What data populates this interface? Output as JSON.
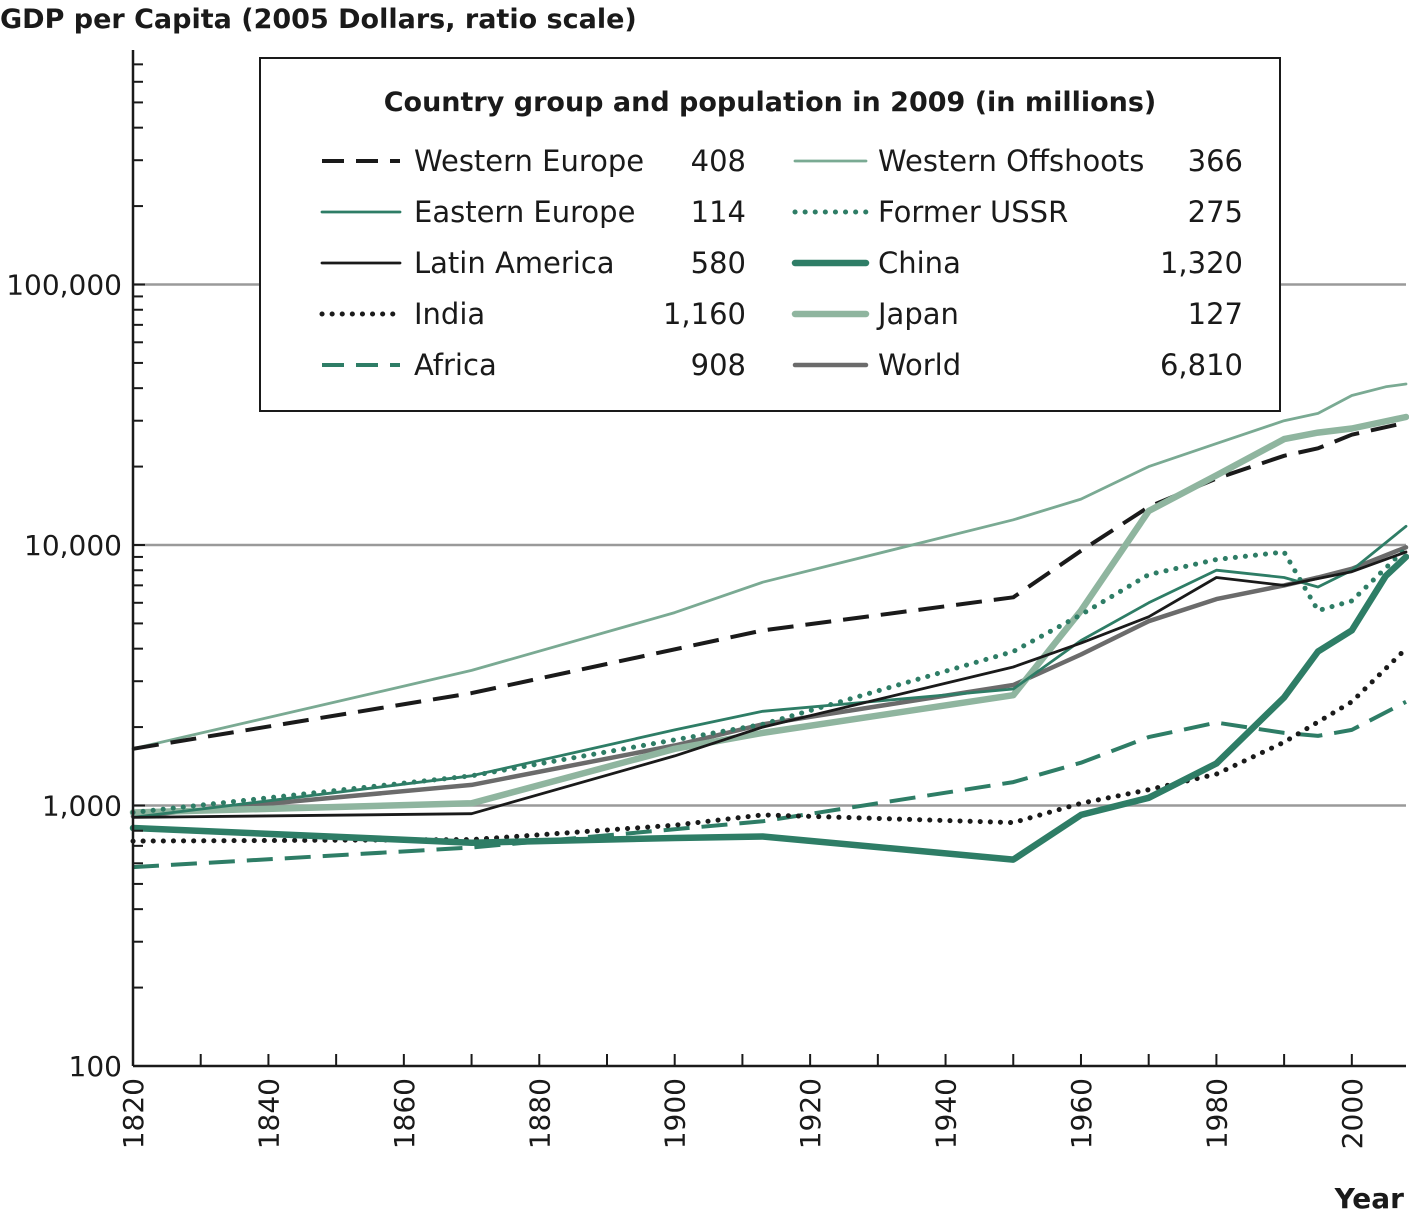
{
  "chart_data": {
    "type": "line",
    "title": "",
    "ylabel": "GDP per Capita (2005 Dollars, ratio scale)",
    "xlabel": "Year",
    "y_scale": "log",
    "ylim": [
      100,
      1000000
    ],
    "xlim": [
      1820,
      2008
    ],
    "y_ticks": [
      100,
      1000,
      10000,
      100000
    ],
    "y_tick_labels": [
      "100",
      "1,000",
      "10,000",
      "100,000"
    ],
    "x_ticks": [
      1820,
      1840,
      1860,
      1880,
      1900,
      1920,
      1940,
      1960,
      1980,
      2000
    ],
    "x_tick_labels": [
      "1820",
      "1840",
      "1860",
      "1880",
      "1900",
      "1920",
      "1940",
      "1960",
      "1980",
      "2000"
    ],
    "grid": "horizontal at 1,000, 10,000, 100,000",
    "legend": {
      "title": "Country group and population in 2009 (in millions)",
      "placement": "top"
    },
    "series": [
      {
        "name": "Western Europe",
        "population": "408",
        "color": "#1a1a1a",
        "style": "long-dash",
        "points": [
          [
            1820,
            1650
          ],
          [
            1870,
            2700
          ],
          [
            1913,
            4700
          ],
          [
            1950,
            6300
          ],
          [
            1960,
            9500
          ],
          [
            1970,
            14000
          ],
          [
            1980,
            18000
          ],
          [
            1990,
            22000
          ],
          [
            1995,
            23500
          ],
          [
            2000,
            26500
          ],
          [
            2008,
            29500
          ]
        ]
      },
      {
        "name": "Eastern Europe",
        "population": "114",
        "color": "#2e7d66",
        "style": "solid-thin",
        "points": [
          [
            1820,
            900
          ],
          [
            1870,
            1300
          ],
          [
            1900,
            1950
          ],
          [
            1913,
            2300
          ],
          [
            1950,
            2800
          ],
          [
            1960,
            4300
          ],
          [
            1970,
            6000
          ],
          [
            1980,
            8000
          ],
          [
            1990,
            7500
          ],
          [
            1995,
            6900
          ],
          [
            2000,
            8000
          ],
          [
            2008,
            11800
          ]
        ]
      },
      {
        "name": "Latin America",
        "population": "580",
        "color": "#1a1a1a",
        "style": "solid-thin",
        "points": [
          [
            1820,
            900
          ],
          [
            1870,
            930
          ],
          [
            1900,
            1550
          ],
          [
            1913,
            2000
          ],
          [
            1950,
            3400
          ],
          [
            1960,
            4200
          ],
          [
            1970,
            5300
          ],
          [
            1980,
            7500
          ],
          [
            1990,
            7000
          ],
          [
            2000,
            7900
          ],
          [
            2008,
            9400
          ]
        ]
      },
      {
        "name": "India",
        "population": "1,160",
        "color": "#1a1a1a",
        "style": "dotted",
        "points": [
          [
            1820,
            730
          ],
          [
            1870,
            740
          ],
          [
            1900,
            840
          ],
          [
            1913,
            920
          ],
          [
            1950,
            860
          ],
          [
            1960,
            1020
          ],
          [
            1970,
            1150
          ],
          [
            1980,
            1320
          ],
          [
            1990,
            1750
          ],
          [
            2000,
            2500
          ],
          [
            2008,
            4000
          ]
        ]
      },
      {
        "name": "Africa",
        "population": "908",
        "color": "#2e7d66",
        "style": "long-dash",
        "points": [
          [
            1820,
            580
          ],
          [
            1870,
            690
          ],
          [
            1913,
            870
          ],
          [
            1950,
            1230
          ],
          [
            1960,
            1460
          ],
          [
            1970,
            1830
          ],
          [
            1980,
            2080
          ],
          [
            1990,
            1900
          ],
          [
            1995,
            1850
          ],
          [
            2000,
            1950
          ],
          [
            2008,
            2500
          ]
        ]
      },
      {
        "name": "Western Offshoots",
        "population": "366",
        "color": "#7aaa93",
        "style": "solid-thin",
        "points": [
          [
            1820,
            1650
          ],
          [
            1870,
            3300
          ],
          [
            1900,
            5500
          ],
          [
            1913,
            7200
          ],
          [
            1950,
            12500
          ],
          [
            1960,
            15000
          ],
          [
            1970,
            20000
          ],
          [
            1980,
            24500
          ],
          [
            1990,
            30000
          ],
          [
            1995,
            32000
          ],
          [
            2000,
            37500
          ],
          [
            2005,
            40500
          ],
          [
            2008,
            41500
          ]
        ]
      },
      {
        "name": "Former USSR",
        "population": "275",
        "color": "#2e7d66",
        "style": "dotted",
        "points": [
          [
            1820,
            940
          ],
          [
            1870,
            1300
          ],
          [
            1913,
            2050
          ],
          [
            1950,
            3900
          ],
          [
            1960,
            5400
          ],
          [
            1970,
            7700
          ],
          [
            1980,
            8800
          ],
          [
            1990,
            9400
          ],
          [
            1995,
            5600
          ],
          [
            2000,
            6100
          ],
          [
            2008,
            9700
          ]
        ]
      },
      {
        "name": "China",
        "population": "1,320",
        "color": "#2e7d66",
        "style": "solid-thick",
        "points": [
          [
            1820,
            820
          ],
          [
            1870,
            720
          ],
          [
            1900,
            750
          ],
          [
            1913,
            760
          ],
          [
            1950,
            620
          ],
          [
            1960,
            920
          ],
          [
            1970,
            1070
          ],
          [
            1980,
            1450
          ],
          [
            1990,
            2600
          ],
          [
            1995,
            3900
          ],
          [
            2000,
            4700
          ],
          [
            2005,
            7600
          ],
          [
            2008,
            9000
          ]
        ]
      },
      {
        "name": "Japan",
        "population": "127",
        "color": "#8fb59f",
        "style": "solid-thick",
        "points": [
          [
            1820,
            940
          ],
          [
            1870,
            1020
          ],
          [
            1900,
            1650
          ],
          [
            1913,
            1900
          ],
          [
            1950,
            2650
          ],
          [
            1960,
            5600
          ],
          [
            1970,
            13500
          ],
          [
            1980,
            18500
          ],
          [
            1990,
            25500
          ],
          [
            1995,
            27000
          ],
          [
            2000,
            28000
          ],
          [
            2008,
            31000
          ]
        ]
      },
      {
        "name": "World",
        "population": "6,810",
        "color": "#6b6b6b",
        "style": "solid-medium",
        "points": [
          [
            1820,
            910
          ],
          [
            1870,
            1200
          ],
          [
            1900,
            1700
          ],
          [
            1913,
            2050
          ],
          [
            1950,
            2900
          ],
          [
            1960,
            3800
          ],
          [
            1970,
            5100
          ],
          [
            1980,
            6200
          ],
          [
            1990,
            7000
          ],
          [
            1995,
            7500
          ],
          [
            2000,
            8100
          ],
          [
            2008,
            9800
          ]
        ]
      }
    ]
  }
}
